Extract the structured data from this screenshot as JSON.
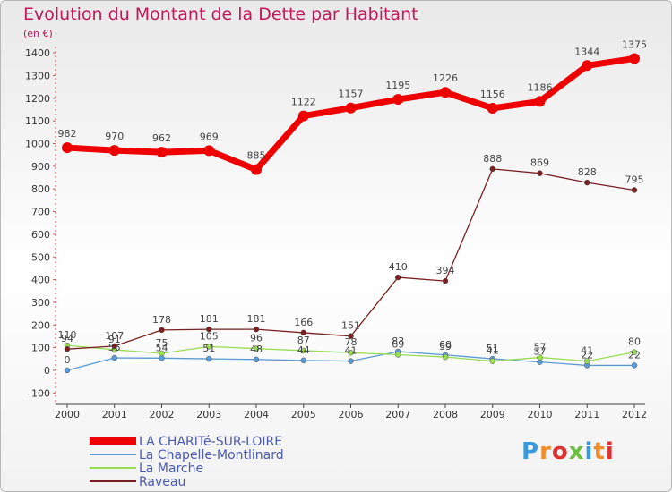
{
  "chart_data": {
    "type": "line",
    "title": "Evolution du Montant de la Dette par Habitant",
    "subtitle": "(en €)",
    "x": [
      "2000",
      "2001",
      "2002",
      "2003",
      "2004",
      "2005",
      "2006",
      "2007",
      "2008",
      "2009",
      "2010",
      "2011",
      "2012"
    ],
    "ylim": [
      -100,
      1450
    ],
    "yticks": [
      -100,
      0,
      100,
      200,
      300,
      400,
      500,
      600,
      700,
      800,
      900,
      1000,
      1100,
      1200,
      1300,
      1400
    ],
    "grid": false,
    "legend_position": "bottom-left",
    "series": [
      {
        "name": "LA CHARITé-SUR-LOIRE",
        "color": "#ee0000",
        "values": [
          982,
          970,
          962,
          969,
          885,
          1122,
          1157,
          1195,
          1226,
          1156,
          1186,
          1344,
          1375
        ]
      },
      {
        "name": "La Chapelle-Montlinard",
        "color": "#5b9bd5",
        "values": [
          0,
          55,
          54,
          51,
          48,
          44,
          41,
          83,
          68,
          51,
          37,
          22,
          22
        ]
      },
      {
        "name": "La Marche",
        "color": "#99dd55",
        "values": [
          110,
          91,
          75,
          105,
          96,
          87,
          78,
          69,
          59,
          41,
          57,
          41,
          80
        ]
      },
      {
        "name": "Raveau",
        "color": "#7a2020",
        "values": [
          94,
          107,
          178,
          181,
          181,
          166,
          151,
          410,
          394,
          888,
          869,
          828,
          795
        ]
      }
    ]
  },
  "logo": {
    "text": "Proxiti",
    "letters": [
      "P",
      "r",
      "o",
      "x",
      "i",
      "t",
      "i"
    ],
    "colors": [
      "#3a9ad9",
      "#f28c28",
      "#e03030",
      "#6abf40",
      "#3a9ad9",
      "#f28c28",
      "#e03030"
    ]
  }
}
